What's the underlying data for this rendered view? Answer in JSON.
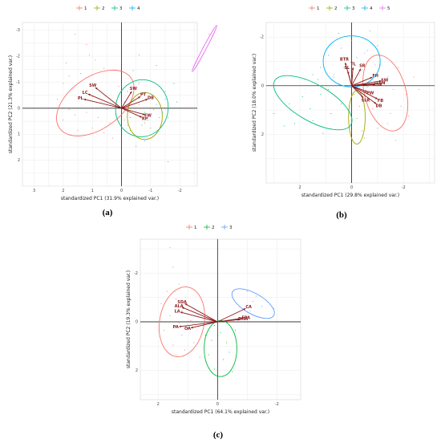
{
  "figure": {
    "background": "#ffffff",
    "palette": {
      "1": "#f8766d",
      "2": "#a3a500",
      "3": "#00bf7d",
      "4": "#00b0f6",
      "5": "#e76bf3"
    },
    "arrow_color": "#8b1a1a"
  },
  "chart_data": [
    {
      "type": "scatter",
      "caption": "(a)",
      "xlabel": "standardized PC1 (31.9% explained var.)",
      "ylabel": "standardized PC2 (21.3% explained var.)",
      "xlim": [
        -2.6,
        3.4
      ],
      "ylim": [
        -3.3,
        3.0
      ],
      "x_reversed": true,
      "y_reversed": true,
      "x_ticks": [
        -3,
        -2,
        -1,
        0,
        1,
        2,
        3
      ],
      "y_ticks": [
        -3,
        -2,
        -1,
        0,
        1,
        2
      ],
      "legend_position": "top",
      "legend": [
        "1",
        "2",
        "3",
        "4"
      ],
      "series": [
        {
          "name": "1",
          "color": "#f8766d",
          "points": [
            [
              1.6,
              -2.8
            ],
            [
              1.1,
              -2.0
            ],
            [
              0.9,
              -1.8
            ],
            [
              0.6,
              -1.5
            ],
            [
              1.4,
              -1.3
            ],
            [
              1.8,
              -1.2
            ],
            [
              2.0,
              -0.9
            ],
            [
              1.7,
              -0.7
            ],
            [
              1.3,
              -0.6
            ],
            [
              1.0,
              -0.4
            ],
            [
              0.7,
              -0.2
            ],
            [
              0.5,
              0.1
            ],
            [
              1.2,
              0.2
            ],
            [
              1.6,
              0.3
            ],
            [
              2.0,
              0.5
            ],
            [
              0.8,
              0.4
            ],
            [
              0.4,
              0.6
            ],
            [
              1.0,
              0.8
            ],
            [
              0.6,
              1.0
            ],
            [
              0.3,
              1.2
            ],
            [
              1.5,
              0.9
            ],
            [
              1.8,
              0.1
            ],
            [
              0.2,
              0.3
            ],
            [
              -0.1,
              0.5
            ],
            [
              0.1,
              -0.8
            ],
            [
              2.2,
              -0.3
            ],
            [
              1.9,
              -1.7
            ],
            [
              1.2,
              -2.4
            ]
          ],
          "ellipse": {
            "cx": 0.9,
            "cy": -0.2,
            "rx": 1.5,
            "ry": 1.0,
            "angle": -35
          }
        },
        {
          "name": "2",
          "color": "#a3a500",
          "points": [
            [
              -0.5,
              0.3
            ],
            [
              -0.8,
              0.6
            ],
            [
              -1.1,
              0.1
            ],
            [
              -0.3,
              0.9
            ],
            [
              -0.9,
              -0.3
            ],
            [
              -1.3,
              0.4
            ],
            [
              -0.6,
              -0.1
            ],
            [
              -1.0,
              0.8
            ]
          ],
          "ellipse": {
            "cx": -0.8,
            "cy": 0.3,
            "rx": 0.6,
            "ry": 0.9,
            "angle": 0
          }
        },
        {
          "name": "3",
          "color": "#00bf7d",
          "points": [
            [
              -0.2,
              -0.6
            ],
            [
              -0.6,
              -0.9
            ],
            [
              -1.0,
              -0.5
            ],
            [
              -0.4,
              -0.3
            ],
            [
              -0.8,
              0.2
            ],
            [
              -1.2,
              -0.1
            ],
            [
              -0.3,
              0.4
            ],
            [
              -1.4,
              0.2
            ],
            [
              -0.7,
              0.7
            ],
            [
              -1.5,
              -0.3
            ]
          ],
          "ellipse": {
            "cx": -0.7,
            "cy": 0.0,
            "rx": 0.9,
            "ry": 1.1,
            "angle": 10
          }
        },
        {
          "name": "4",
          "color": "#00b0f6",
          "points": [
            [
              -0.6,
              -2.0
            ],
            [
              -0.4,
              -1.4
            ],
            [
              -1.2,
              -1.6
            ],
            [
              -1.5,
              -0.6
            ],
            [
              -1.8,
              -0.9
            ],
            [
              -0.9,
              0.5
            ],
            [
              -1.6,
              0.4
            ],
            [
              -1.2,
              1.0
            ],
            [
              -0.2,
              0.7
            ],
            [
              -0.5,
              1.5
            ],
            [
              -1.3,
              -0.8
            ],
            [
              -1.6,
              2.1
            ],
            [
              -0.8,
              1.3
            ],
            [
              -1.9,
              -0.2
            ],
            [
              -0.1,
              -0.2
            ]
          ],
          "ellipse": null
        },
        {
          "name": "4",
          "color": "#e76bf3",
          "points": [
            [
              -3.0,
              -2.8
            ],
            [
              -2.8,
              -2.3
            ],
            [
              -2.7,
              -1.8
            ]
          ],
          "ellipse": {
            "cx": -2.85,
            "cy": -2.3,
            "rx": 0.9,
            "ry": 0.06,
            "angle": -62
          }
        }
      ],
      "arrows": [
        {
          "label": "LC",
          "x": 1.15,
          "y": -0.55
        },
        {
          "label": "PL",
          "x": 1.3,
          "y": -0.35
        },
        {
          "label": "SW",
          "x": 0.9,
          "y": -0.8
        },
        {
          "label": "SW",
          "x": -0.35,
          "y": -0.65
        },
        {
          "label": "PT",
          "x": -0.65,
          "y": -0.45
        },
        {
          "label": "DB",
          "x": -0.9,
          "y": -0.35
        },
        {
          "label": "FW",
          "x": -0.8,
          "y": 0.25
        },
        {
          "label": "RP",
          "x": -0.7,
          "y": 0.35
        }
      ]
    },
    {
      "type": "scatter",
      "caption": "(b)",
      "xlabel": "standardized PC1 (29.8% explained var.)",
      "ylabel": "standardized PC2 (18.0% explained var.)",
      "xlim": [
        -3.2,
        3.3
      ],
      "ylim": [
        -2.6,
        4.0
      ],
      "x_reversed": true,
      "y_reversed": true,
      "x_ticks": [
        -2,
        0,
        2
      ],
      "y_ticks": [
        -2,
        0,
        2
      ],
      "legend_position": "top",
      "legend": [
        "1",
        "2",
        "3",
        "4",
        "5"
      ],
      "series": [
        {
          "name": "1",
          "color": "#f8766d",
          "points": [
            [
              -0.5,
              -1.3
            ],
            [
              -0.9,
              -0.8
            ],
            [
              -1.3,
              -0.2
            ],
            [
              -1.6,
              0.2
            ],
            [
              -1.2,
              0.6
            ],
            [
              -1.9,
              0.9
            ],
            [
              -1.5,
              1.2
            ],
            [
              -0.8,
              1.0
            ],
            [
              -1.8,
              -0.7
            ],
            [
              -2.4,
              -0.3
            ],
            [
              -2.1,
              0.4
            ],
            [
              -1.0,
              1.8
            ],
            [
              -1.4,
              1.6
            ],
            [
              -2.2,
              1.3
            ],
            [
              -0.6,
              0.1
            ],
            [
              -2.6,
              0.2
            ],
            [
              -1.7,
              2.3
            ],
            [
              -0.3,
              -0.4
            ]
          ],
          "ellipse": {
            "cx": -1.3,
            "cy": 0.3,
            "rx": 0.8,
            "ry": 1.6,
            "angle": -15
          }
        },
        {
          "name": "2",
          "color": "#a3a500",
          "points": [
            [
              -0.1,
              0.4
            ],
            [
              -0.3,
              0.9
            ],
            [
              -0.2,
              1.4
            ],
            [
              -0.4,
              1.9
            ],
            [
              0.1,
              1.1
            ],
            [
              -0.5,
              2.2
            ]
          ],
          "ellipse": {
            "cx": -0.2,
            "cy": 1.3,
            "rx": 0.32,
            "ry": 1.1,
            "angle": 0
          }
        },
        {
          "name": "3",
          "color": "#00bf7d",
          "points": [
            [
              0.4,
              0.8
            ],
            [
              0.8,
              1.2
            ],
            [
              1.2,
              0.4
            ],
            [
              1.6,
              1.0
            ],
            [
              2.2,
              1.6
            ],
            [
              2.6,
              1.7
            ],
            [
              1.9,
              0.5
            ],
            [
              1.3,
              -0.2
            ],
            [
              0.9,
              0.2
            ],
            [
              2.4,
              0.8
            ],
            [
              1.5,
              1.5
            ],
            [
              3.0,
              1.2
            ],
            [
              0.7,
              -0.4
            ],
            [
              1.1,
              2.0
            ]
          ],
          "ellipse": {
            "cx": 1.5,
            "cy": 0.7,
            "rx": 1.7,
            "ry": 0.75,
            "angle": 30
          }
        },
        {
          "name": "4",
          "color": "#00b0f6",
          "points": [
            [
              -1.0,
              -1.6
            ],
            [
              -0.6,
              -1.4
            ],
            [
              -0.2,
              -1.1
            ],
            [
              0.4,
              -1.5
            ],
            [
              0.9,
              -1.2
            ],
            [
              1.2,
              -0.7
            ],
            [
              0.3,
              -0.7
            ],
            [
              -0.4,
              -0.6
            ],
            [
              -1.1,
              -0.8
            ],
            [
              0.7,
              -0.3
            ],
            [
              1.5,
              -0.4
            ],
            [
              0.0,
              -1.8
            ],
            [
              -0.7,
              -2.2
            ],
            [
              0.5,
              -2.1
            ],
            [
              1.8,
              -0.2
            ],
            [
              -1.4,
              -0.3
            ]
          ],
          "ellipse": {
            "cx": 0.0,
            "cy": -1.0,
            "rx": 1.1,
            "ry": 1.05,
            "angle": 0
          }
        },
        {
          "name": "5",
          "color": "#e76bf3",
          "points": [],
          "ellipse": null
        }
      ],
      "arrows": [
        {
          "label": "FB",
          "x": -1.0,
          "y": 0.55
        },
        {
          "label": "DB",
          "x": -0.95,
          "y": 0.75
        },
        {
          "label": "SW",
          "x": -1.15,
          "y": -0.2
        },
        {
          "label": "SN",
          "x": -1.05,
          "y": -0.1
        },
        {
          "label": "HW",
          "x": -0.9,
          "y": -0.05
        },
        {
          "label": "FH",
          "x": -0.8,
          "y": -0.35
        },
        {
          "label": "PW",
          "x": -0.6,
          "y": 0.25
        },
        {
          "label": "SLR",
          "x": -0.45,
          "y": 0.5
        },
        {
          "label": "SR",
          "x": -0.35,
          "y": -0.7
        },
        {
          "label": "TL",
          "x": -0.05,
          "y": -0.75
        },
        {
          "label": "SL",
          "x": 0.15,
          "y": -0.6
        },
        {
          "label": "BTR",
          "x": 0.25,
          "y": -0.95
        }
      ]
    },
    {
      "type": "scatter",
      "caption": "(c)",
      "xlabel": "standardized PC1 (64.1% explained var.)",
      "ylabel": "standardized PC2 (19.3% explained var.)",
      "xlim": [
        -2.8,
        2.6
      ],
      "ylim": [
        -3.4,
        3.2
      ],
      "x_reversed": true,
      "y_reversed": true,
      "x_ticks": [
        -2,
        0,
        2
      ],
      "y_ticks": [
        -2,
        0,
        2
      ],
      "legend_position": "top",
      "legend": [
        "1",
        "2",
        "3"
      ],
      "series": [
        {
          "name": "1",
          "color": "#f8766d",
          "points": [
            [
              1.6,
              -3.0
            ],
            [
              1.5,
              -2.2
            ],
            [
              1.7,
              -1.2
            ],
            [
              1.4,
              -0.9
            ],
            [
              1.9,
              -0.7
            ],
            [
              1.2,
              -0.4
            ],
            [
              1.6,
              -0.2
            ],
            [
              1.3,
              0.1
            ],
            [
              1.0,
              0.3
            ],
            [
              1.8,
              0.4
            ],
            [
              1.2,
              0.6
            ],
            [
              0.8,
              0.9
            ],
            [
              1.5,
              1.0
            ],
            [
              1.1,
              1.2
            ],
            [
              0.6,
              1.5
            ],
            [
              1.4,
              1.4
            ],
            [
              0.9,
              0.0
            ],
            [
              1.3,
              -1.5
            ]
          ],
          "ellipse": {
            "cx": 1.2,
            "cy": 0.0,
            "rx": 0.75,
            "ry": 1.45,
            "angle": 10
          }
        },
        {
          "name": "2",
          "color": "#00ba38",
          "points": [
            [
              0.1,
              0.2
            ],
            [
              -0.1,
              0.5
            ],
            [
              0.2,
              0.8
            ],
            [
              -0.3,
              0.9
            ],
            [
              0.0,
              1.1
            ],
            [
              -0.4,
              1.3
            ],
            [
              0.3,
              1.4
            ],
            [
              -0.2,
              1.6
            ],
            [
              0.1,
              2.0
            ],
            [
              -0.5,
              2.1
            ],
            [
              0.0,
              2.8
            ],
            [
              -0.6,
              0.4
            ],
            [
              0.4,
              0.6
            ]
          ],
          "ellipse": {
            "cx": -0.1,
            "cy": 1.1,
            "rx": 0.55,
            "ry": 1.15,
            "angle": 0
          }
        },
        {
          "name": "3",
          "color": "#619cff",
          "points": [
            [
              -1.0,
              -1.2
            ],
            [
              -1.2,
              -0.8
            ],
            [
              -1.5,
              -0.6
            ],
            [
              -1.9,
              -0.5
            ],
            [
              -1.1,
              -0.4
            ],
            [
              -1.3,
              -1.0
            ]
          ],
          "ellipse": {
            "cx": -1.2,
            "cy": -0.75,
            "rx": 0.8,
            "ry": 0.42,
            "angle": 30
          }
        }
      ],
      "arrows": [
        {
          "label": "CA",
          "x": -0.95,
          "y": -0.55
        },
        {
          "label": "EPA",
          "x": -0.85,
          "y": -0.15
        },
        {
          "label": "DHA",
          "x": -0.75,
          "y": -0.1
        },
        {
          "label": "SDA",
          "x": 1.1,
          "y": -0.75
        },
        {
          "label": "ALA",
          "x": 1.2,
          "y": -0.6
        },
        {
          "label": "LA",
          "x": 1.25,
          "y": -0.4
        },
        {
          "label": "PA",
          "x": 1.3,
          "y": 0.2
        },
        {
          "label": "OA",
          "x": 0.9,
          "y": 0.25
        }
      ]
    }
  ]
}
